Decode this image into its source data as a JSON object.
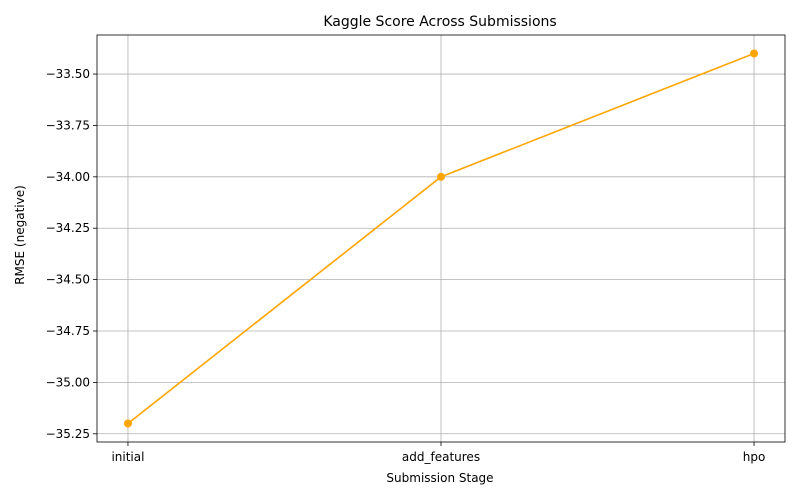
{
  "chart_data": {
    "type": "line",
    "title": "Kaggle Score Across Submissions",
    "xlabel": "Submission Stage",
    "ylabel": "RMSE (negative)",
    "categories": [
      "initial",
      "add_features",
      "hpo"
    ],
    "series": [
      {
        "values": [
          -35.2,
          -34.0,
          -33.4
        ],
        "color": "#FFA500",
        "marker": "circle"
      }
    ],
    "ylim": [
      -35.29,
      -33.31
    ],
    "yticks": [
      -35.25,
      -35.0,
      -34.75,
      -34.5,
      -34.25,
      -34.0,
      -33.75,
      -33.5
    ],
    "ytick_labels": [
      "−35.25",
      "−35.00",
      "−34.75",
      "−34.50",
      "−34.25",
      "−34.00",
      "−33.75",
      "−33.50"
    ],
    "grid": true,
    "legend": "none"
  }
}
